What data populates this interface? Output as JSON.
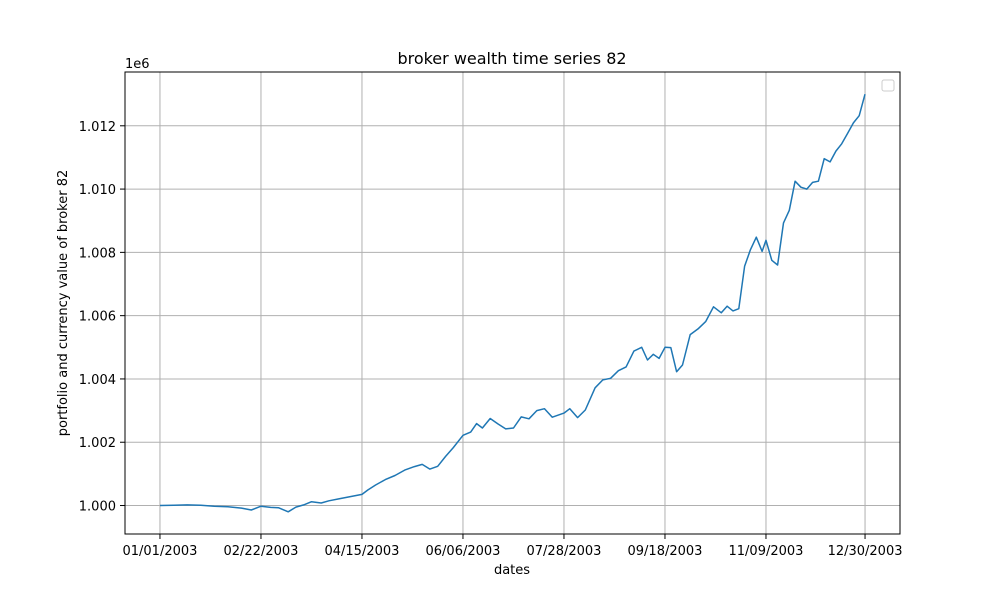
{
  "chart_data": {
    "type": "line",
    "title": "broker wealth time series 82",
    "xlabel": "dates",
    "ylabel": "portfolio and currency value of broker 82",
    "y_offset_label": "1e6",
    "x_ticks": [
      "01/01/2003",
      "02/22/2003",
      "04/15/2003",
      "06/06/2003",
      "07/28/2003",
      "09/18/2003",
      "11/09/2003",
      "12/30/2003"
    ],
    "y_ticks": [
      "1.000",
      "1.002",
      "1.004",
      "1.006",
      "1.008",
      "1.010",
      "1.012"
    ],
    "xlim": [
      "2002-12-14",
      "2004-01-17"
    ],
    "ylim": [
      999100,
      1013700
    ],
    "grid": true,
    "legend": "top-right, empty",
    "colors": {
      "line": "#1f77b4",
      "grid": "#b0b0b0",
      "axes": "#000000"
    },
    "series": [
      {
        "x": [
          "2003-01-01",
          "2003-01-08",
          "2003-01-15",
          "2003-01-22",
          "2003-01-29",
          "2003-02-05",
          "2003-02-12",
          "2003-02-17",
          "2003-02-22",
          "2003-02-27",
          "2003-03-03",
          "2003-03-08",
          "2003-03-12",
          "2003-03-16",
          "2003-03-20",
          "2003-03-25",
          "2003-03-29",
          "2003-04-03",
          "2003-04-08",
          "2003-04-15",
          "2003-04-18",
          "2003-04-22",
          "2003-04-27",
          "2003-05-02",
          "2003-05-07",
          "2003-05-12",
          "2003-05-16",
          "2003-05-20",
          "2003-05-24",
          "2003-05-28",
          "2003-06-01",
          "2003-06-06",
          "2003-06-10",
          "2003-06-13",
          "2003-06-16",
          "2003-06-20",
          "2003-06-24",
          "2003-06-28",
          "2003-07-02",
          "2003-07-06",
          "2003-07-10",
          "2003-07-14",
          "2003-07-18",
          "2003-07-22",
          "2003-07-28",
          "2003-07-31",
          "2003-08-04",
          "2003-08-08",
          "2003-08-13",
          "2003-08-17",
          "2003-08-21",
          "2003-08-25",
          "2003-08-29",
          "2003-09-02",
          "2003-09-06",
          "2003-09-09",
          "2003-09-12",
          "2003-09-15",
          "2003-09-18",
          "2003-09-21",
          "2003-09-24",
          "2003-09-27",
          "2003-10-01",
          "2003-10-05",
          "2003-10-09",
          "2003-10-13",
          "2003-10-17",
          "2003-10-20",
          "2003-10-23",
          "2003-10-26",
          "2003-10-29",
          "2003-11-01",
          "2003-11-04",
          "2003-11-07",
          "2003-11-09",
          "2003-11-12",
          "2003-11-15",
          "2003-11-18",
          "2003-11-21",
          "2003-11-24",
          "2003-11-27",
          "2003-11-30",
          "2003-12-03",
          "2003-12-06",
          "2003-12-09",
          "2003-12-12",
          "2003-12-15",
          "2003-12-18",
          "2003-12-21",
          "2003-12-24",
          "2003-12-27",
          "2003-12-30"
        ],
        "y": [
          1000000,
          1000010,
          1000020,
          1000010,
          999980,
          999960,
          999920,
          999860,
          999980,
          999940,
          999930,
          999800,
          999950,
          1000020,
          1000120,
          1000080,
          1000150,
          1000210,
          1000270,
          1000350,
          1000490,
          1000650,
          1000820,
          1000950,
          1001120,
          1001230,
          1001300,
          1001150,
          1001240,
          1001550,
          1001830,
          1002220,
          1002320,
          1002590,
          1002450,
          1002750,
          1002580,
          1002420,
          1002450,
          1002800,
          1002740,
          1003000,
          1003060,
          1002790,
          1002920,
          1003060,
          1002780,
          1003020,
          1003720,
          1003970,
          1004020,
          1004260,
          1004380,
          1004880,
          1005000,
          1004600,
          1004780,
          1004650,
          1005000,
          1004990,
          1004230,
          1004440,
          1005400,
          1005580,
          1005820,
          1006280,
          1006090,
          1006300,
          1006150,
          1006220,
          1007560,
          1008080,
          1008480,
          1008030,
          1008380,
          1007750,
          1007600,
          1008930,
          1009330,
          1010250,
          1010060,
          1010000,
          1010210,
          1010250,
          1010960,
          1010860,
          1011200,
          1011430,
          1011760,
          1012090,
          1012320,
          1013000
        ]
      }
    ]
  }
}
